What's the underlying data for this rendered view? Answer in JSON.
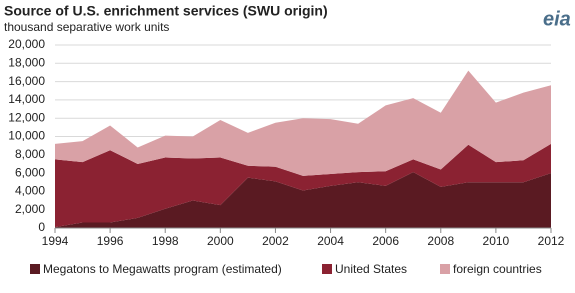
{
  "chart_data": {
    "type": "stacked_area",
    "title": "Source of U.S. enrichment services (SWU origin)",
    "subtitle": "thousand separative work units",
    "logo": "eia",
    "x": [
      1994,
      1995,
      1996,
      1997,
      1998,
      1999,
      2000,
      2001,
      2002,
      2003,
      2004,
      2005,
      2006,
      2007,
      2008,
      2009,
      2010,
      2011,
      2012
    ],
    "series": [
      {
        "name": "Megatons to Megawatts program (estimated)",
        "color": "#5a1a22",
        "values": [
          100,
          600,
          600,
          1100,
          2100,
          3000,
          2500,
          5500,
          5100,
          4100,
          4600,
          5000,
          4600,
          6100,
          4500,
          5000,
          5000,
          5000,
          6000
        ]
      },
      {
        "name": "United States",
        "color": "#8b2232",
        "values": [
          7400,
          6600,
          7900,
          5900,
          5600,
          4600,
          5200,
          1300,
          1600,
          1600,
          1300,
          1100,
          1600,
          1400,
          1900,
          4100,
          2200,
          2400,
          3200
        ]
      },
      {
        "name": "foreign countries",
        "color": "#d9a1a6",
        "values": [
          1700,
          2300,
          2700,
          1800,
          2400,
          2400,
          4100,
          3600,
          4800,
          6300,
          6000,
          5300,
          7200,
          6700,
          6200,
          8100,
          6500,
          7400,
          6400
        ]
      }
    ],
    "xlim": [
      1994,
      2012
    ],
    "xticks": [
      1994,
      1996,
      1998,
      2000,
      2002,
      2004,
      2006,
      2008,
      2010,
      2012
    ],
    "ylim": [
      0,
      20000
    ],
    "yticks": [
      0,
      {
        "value": 2000,
        "label": "2,000"
      },
      {
        "value": 4000,
        "label": "4,000"
      },
      {
        "value": 6000,
        "label": "6,000"
      },
      {
        "value": 8000,
        "label": "8,000"
      },
      {
        "value": 10000,
        "label": "10,000"
      },
      {
        "value": 12000,
        "label": "12,000"
      },
      {
        "value": 14000,
        "label": "14,000"
      },
      {
        "value": 16000,
        "label": "16,000"
      },
      {
        "value": 18000,
        "label": "18,000"
      },
      {
        "value": 20000,
        "label": "20,000"
      }
    ],
    "grid": true,
    "legend": "bottom"
  }
}
